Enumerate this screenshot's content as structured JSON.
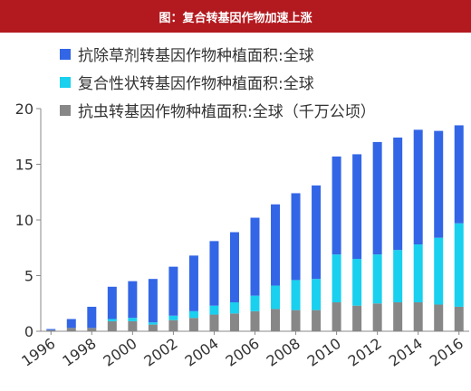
{
  "header": {
    "title": "图：复合转基因作物加速上涨"
  },
  "colors": {
    "title_bg": "#b31a1f",
    "herbicide": "#3366e6",
    "stacked": "#19d0ee",
    "insect": "#878787"
  },
  "chart_data": {
    "type": "bar",
    "stacked": true,
    "categories": [
      "1996",
      "1997",
      "1998",
      "1999",
      "2000",
      "2001",
      "2002",
      "2003",
      "2004",
      "2005",
      "2006",
      "2007",
      "2008",
      "2009",
      "2010",
      "2011",
      "2012",
      "2013",
      "2014",
      "2015",
      "2016"
    ],
    "x_tick_labels": [
      "1996",
      "1998",
      "2000",
      "2002",
      "2004",
      "2006",
      "2008",
      "2010",
      "2012",
      "2014",
      "2016"
    ],
    "series": [
      {
        "name": "抗虫转基因作物种植面积:全球（千万公顷）",
        "color": "#878787",
        "values": [
          0.1,
          0.3,
          0.3,
          0.9,
          0.9,
          0.6,
          1.0,
          1.2,
          1.5,
          1.6,
          1.8,
          2.0,
          1.9,
          1.9,
          2.6,
          2.3,
          2.5,
          2.6,
          2.6,
          2.4,
          2.2
        ]
      },
      {
        "name": "复合性状转基因作物种植面积:全球",
        "color": "#19d0ee",
        "values": [
          0,
          0,
          0,
          0.2,
          0.3,
          0.2,
          0.4,
          0.6,
          0.8,
          1.0,
          1.4,
          2.1,
          2.7,
          2.8,
          4.3,
          4.2,
          4.4,
          4.7,
          5.2,
          6.0,
          7.5
        ]
      },
      {
        "name": "抗除草剂转基因作物种植面积:全球",
        "color": "#3366e6",
        "values": [
          0.1,
          0.8,
          1.9,
          2.9,
          3.3,
          3.9,
          4.4,
          5.0,
          5.8,
          6.3,
          7.0,
          7.3,
          7.8,
          8.4,
          8.8,
          9.4,
          10.1,
          10.1,
          10.3,
          9.6,
          8.8
        ]
      }
    ],
    "legend_order": [
      2,
      1,
      0
    ],
    "ylim": [
      0,
      20
    ],
    "yticks": [
      0,
      5,
      10,
      15,
      20
    ],
    "grid": false,
    "legend_position": "top-left"
  }
}
